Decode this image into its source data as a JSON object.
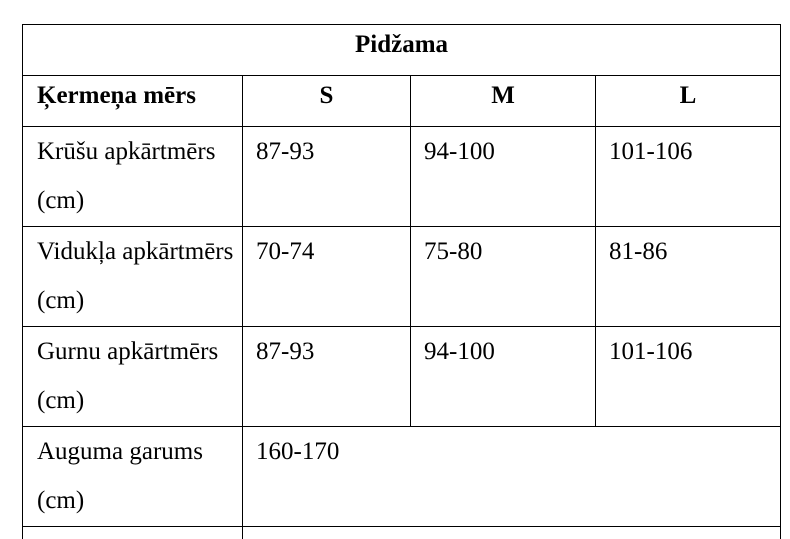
{
  "table": {
    "title": "Pidžama",
    "headers": {
      "label": "Ķermeņa mērs",
      "sizes": [
        "S",
        "M",
        "L"
      ]
    },
    "rows": [
      {
        "label": "Krūšu apkārtmērs (cm)",
        "values": [
          "87-93",
          "94-100",
          "101-106"
        ]
      },
      {
        "label": "Vidukļa apkārtmērs (cm)",
        "values": [
          "70-74",
          "75-80",
          "81-86"
        ]
      },
      {
        "label": "Gurnu apkārtmērs (cm)",
        "values": [
          "87-93",
          "94-100",
          "101-106"
        ]
      }
    ],
    "height_row": {
      "label": "Auguma garums (cm)",
      "value": "160-170"
    }
  }
}
